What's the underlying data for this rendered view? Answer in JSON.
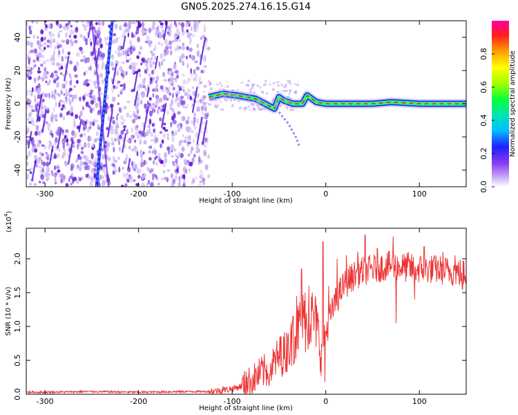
{
  "title": "GN05.2025.274.16.15.G14",
  "chart_data": [
    {
      "type": "heatmap",
      "xlabel": "Height of straight line (km)",
      "ylabel": "Frequency (Hz)",
      "xlim": [
        -320,
        150
      ],
      "ylim": [
        -50,
        50
      ],
      "xticks": [
        -300,
        -200,
        -100,
        0,
        100
      ],
      "yticks": [
        -40,
        -20,
        0,
        20,
        40
      ],
      "colorbar": {
        "label": "Normalized spectral amplitude",
        "range": [
          0,
          1
        ],
        "ticks": [
          0.0,
          0.2,
          0.4,
          0.6,
          0.8
        ],
        "tick_labels": [
          "0.0",
          "0.2",
          "0.4",
          "0.6",
          "0.8"
        ]
      },
      "features": {
        "noise_region_x": [
          -320,
          -125
        ],
        "steep_streak_x_at_ylim": [
          -245,
          -228
        ],
        "signal_trace": [
          {
            "x": -125,
            "y": 4
          },
          {
            "x": -110,
            "y": 6
          },
          {
            "x": -95,
            "y": 5
          },
          {
            "x": -85,
            "y": 4
          },
          {
            "x": -75,
            "y": 3
          },
          {
            "x": -65,
            "y": 0
          },
          {
            "x": -55,
            "y": -3
          },
          {
            "x": -50,
            "y": 4
          },
          {
            "x": -45,
            "y": 2
          },
          {
            "x": -35,
            "y": 0
          },
          {
            "x": -25,
            "y": 0
          },
          {
            "x": -20,
            "y": 5
          },
          {
            "x": -10,
            "y": 1
          },
          {
            "x": 0,
            "y": 0
          },
          {
            "x": 50,
            "y": 0
          },
          {
            "x": 70,
            "y": 1
          },
          {
            "x": 100,
            "y": 0
          },
          {
            "x": 150,
            "y": 0
          }
        ],
        "fading_tail": [
          {
            "x": -50,
            "y": -5
          },
          {
            "x": -40,
            "y": -12
          },
          {
            "x": -32,
            "y": -20
          },
          {
            "x": -28,
            "y": -26
          }
        ]
      },
      "colors": {
        "noise": "#6a1fd8",
        "streak": "#2020e0",
        "trace_core": "#ff1a1a"
      }
    },
    {
      "type": "line",
      "xlabel": "Height of straight line (km)",
      "ylabel": "SNR (10 * v/v)",
      "y_multiplier_label": "(x10",
      "y_multiplier_exp": "4",
      "y_multiplier_close": ")",
      "xlim": [
        -320,
        150
      ],
      "ylim": [
        0,
        2.45
      ],
      "xticks": [
        -300,
        -200,
        -100,
        0,
        100
      ],
      "yticks": [
        0.0,
        0.5,
        1.0,
        1.5,
        2.0
      ],
      "ytick_labels": [
        "0.0",
        "0.5",
        "1.0",
        "1.5",
        "2.0"
      ],
      "series": [
        {
          "color": "#ee3333",
          "points": [
            [
              -320,
              0.03
            ],
            [
              -300,
              0.03
            ],
            [
              -250,
              0.04
            ],
            [
              -200,
              0.03
            ],
            [
              -150,
              0.04
            ],
            [
              -125,
              0.04
            ],
            [
              -110,
              0.06
            ],
            [
              -100,
              0.08
            ],
            [
              -90,
              0.12
            ],
            [
              -80,
              0.2
            ],
            [
              -70,
              0.3
            ],
            [
              -60,
              0.38
            ],
            [
              -50,
              0.55
            ],
            [
              -40,
              0.65
            ],
            [
              -30,
              0.95
            ],
            [
              -25,
              1.1
            ],
            [
              -20,
              1.0
            ],
            [
              -15,
              1.15
            ],
            [
              -10,
              1.05
            ],
            [
              -5,
              0.6
            ],
            [
              0,
              0.9
            ],
            [
              5,
              1.15
            ],
            [
              10,
              1.35
            ],
            [
              15,
              1.5
            ],
            [
              20,
              1.62
            ],
            [
              30,
              1.75
            ],
            [
              40,
              1.82
            ],
            [
              50,
              1.85
            ],
            [
              60,
              1.88
            ],
            [
              70,
              1.9
            ],
            [
              80,
              1.88
            ],
            [
              90,
              1.86
            ],
            [
              100,
              1.85
            ],
            [
              110,
              1.85
            ],
            [
              120,
              1.84
            ],
            [
              130,
              1.82
            ],
            [
              140,
              1.8
            ],
            [
              150,
              1.78
            ]
          ],
          "spikes": [
            [
              -110,
              0.12
            ],
            [
              -85,
              0.33
            ],
            [
              -68,
              0.45
            ],
            [
              -60,
              0.3
            ],
            [
              -48,
              0.85
            ],
            [
              -40,
              0.9
            ],
            [
              -35,
              1.15
            ],
            [
              -31,
              1.45
            ],
            [
              -26,
              1.85
            ],
            [
              -22,
              1.5
            ],
            [
              -18,
              1.6
            ],
            [
              -12,
              1.2
            ],
            [
              -3,
              2.25
            ],
            [
              -1,
              0.18
            ],
            [
              3,
              1.6
            ],
            [
              12,
              2.0
            ],
            [
              22,
              2.05
            ],
            [
              34,
              2.1
            ],
            [
              42,
              2.35
            ],
            [
              55,
              2.15
            ],
            [
              72,
              2.33
            ],
            [
              75,
              1.05
            ],
            [
              88,
              2.1
            ],
            [
              95,
              1.4
            ],
            [
              105,
              2.18
            ],
            [
              115,
              2.0
            ],
            [
              125,
              2.1
            ],
            [
              138,
              2.05
            ],
            [
              146,
              1.55
            ]
          ]
        }
      ]
    }
  ]
}
